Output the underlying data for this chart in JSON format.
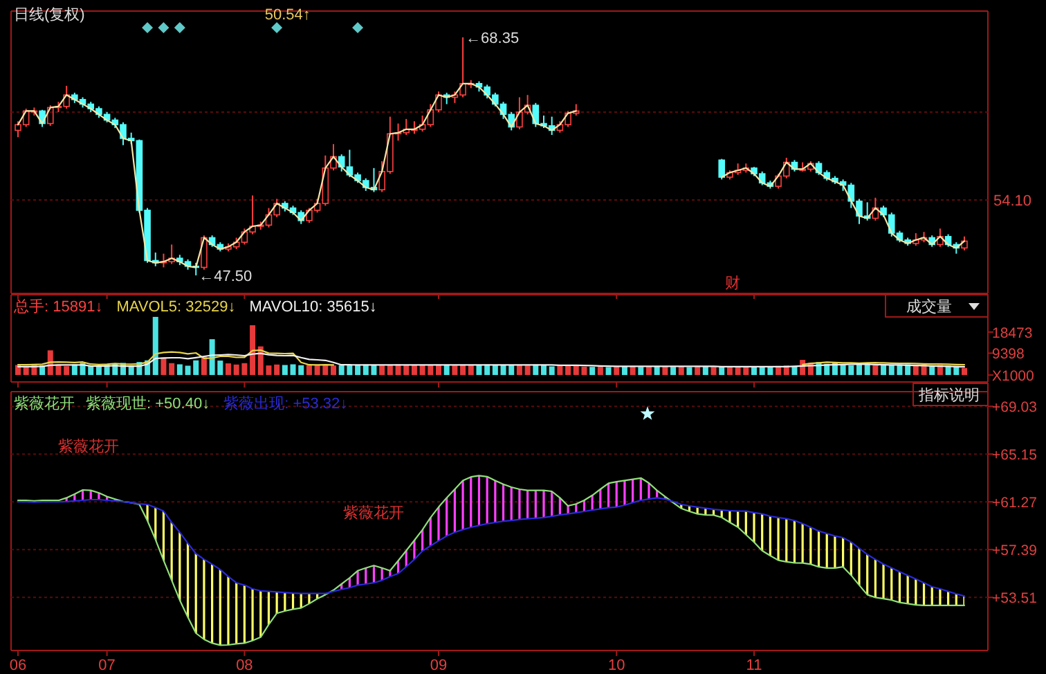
{
  "chart_data": [
    {
      "type": "candlestick",
      "title": "日线(复权)",
      "categories": [
        "06",
        null,
        null,
        null,
        null,
        null,
        null,
        null,
        null,
        null,
        null,
        "07",
        null,
        null,
        null,
        null,
        null,
        null,
        null,
        null,
        null,
        null,
        null,
        null,
        null,
        null,
        null,
        null,
        "08",
        null,
        null,
        null,
        null,
        null,
        null,
        null,
        null,
        null,
        null,
        null,
        null,
        null,
        null,
        null,
        null,
        null,
        null,
        null,
        null,
        null,
        null,
        null,
        "09",
        null,
        null,
        null,
        null,
        null,
        null,
        null,
        null,
        null,
        null,
        null,
        null,
        null,
        null,
        null,
        null,
        null,
        null,
        null,
        null,
        null,
        "10",
        null,
        null,
        null,
        null,
        null,
        null,
        null,
        null,
        null,
        null,
        null,
        null,
        null,
        null,
        null,
        null,
        "11",
        null,
        null,
        null,
        null,
        null,
        null,
        null,
        null,
        null,
        null,
        null,
        null,
        null,
        null,
        null,
        null,
        null,
        null,
        null,
        null,
        null,
        null,
        null,
        null,
        null,
        null
      ],
      "ohlc": [
        [
          60.2,
          61.0,
          59.6,
          60.7
        ],
        [
          60.7,
          62.1,
          60.5,
          61.9
        ],
        [
          61.9,
          62.2,
          61.5,
          61.9
        ],
        [
          61.9,
          62.0,
          60.5,
          60.8
        ],
        [
          60.8,
          62.4,
          60.6,
          62.2
        ],
        [
          62.2,
          62.7,
          61.8,
          62.3
        ],
        [
          62.3,
          64.1,
          62.1,
          63.3
        ],
        [
          63.3,
          63.5,
          62.6,
          62.9
        ],
        [
          62.9,
          63.1,
          62.2,
          62.5
        ],
        [
          62.5,
          62.7,
          61.8,
          62.1
        ],
        [
          62.1,
          62.3,
          61.3,
          61.6
        ],
        [
          61.6,
          61.8,
          60.9,
          61.1
        ],
        [
          61.1,
          61.3,
          60.4,
          60.7
        ],
        [
          60.7,
          60.9,
          58.9,
          59.5
        ],
        [
          59.5,
          60.0,
          59.0,
          59.3
        ],
        [
          59.3,
          59.4,
          53.0,
          53.2
        ],
        [
          53.2,
          53.4,
          48.6,
          48.8
        ],
        [
          48.8,
          49.5,
          48.3,
          48.6
        ],
        [
          48.6,
          49.4,
          48.2,
          48.7
        ],
        [
          48.7,
          50.2,
          48.5,
          49.0
        ],
        [
          49.0,
          49.3,
          48.4,
          48.7
        ],
        [
          48.7,
          48.9,
          48.0,
          48.3
        ],
        [
          48.3,
          48.6,
          47.5,
          48.2
        ],
        [
          48.2,
          51.0,
          48.0,
          50.8
        ],
        [
          50.8,
          51.0,
          50.0,
          50.2
        ],
        [
          50.2,
          50.4,
          49.6,
          49.8
        ],
        [
          49.8,
          50.3,
          49.6,
          50.0
        ],
        [
          50.0,
          50.8,
          49.8,
          50.4
        ],
        [
          50.4,
          51.6,
          50.2,
          51.3
        ],
        [
          51.3,
          54.5,
          51.1,
          51.8
        ],
        [
          51.8,
          52.2,
          51.5,
          51.9
        ],
        [
          51.9,
          53.4,
          51.7,
          52.8
        ],
        [
          52.8,
          54.2,
          52.6,
          53.8
        ],
        [
          53.8,
          54.0,
          53.1,
          53.4
        ],
        [
          53.4,
          53.6,
          52.8,
          53.0
        ],
        [
          53.0,
          53.2,
          52.0,
          52.3
        ],
        [
          52.3,
          53.4,
          52.1,
          53.2
        ],
        [
          53.2,
          54.2,
          53.0,
          53.8
        ],
        [
          53.8,
          58.0,
          53.6,
          56.9
        ],
        [
          56.9,
          59.0,
          56.7,
          57.9
        ],
        [
          57.9,
          58.1,
          56.6,
          57.0
        ],
        [
          57.0,
          58.5,
          56.1,
          56.3
        ],
        [
          56.3,
          56.5,
          55.6,
          55.8
        ],
        [
          55.8,
          56.0,
          54.9,
          55.2
        ],
        [
          55.2,
          56.9,
          54.8,
          55.0
        ],
        [
          55.0,
          57.5,
          54.8,
          56.6
        ],
        [
          56.6,
          61.4,
          56.4,
          59.9
        ],
        [
          59.9,
          60.8,
          59.3,
          60.0
        ],
        [
          60.0,
          61.2,
          59.8,
          60.3
        ],
        [
          60.3,
          61.0,
          59.9,
          60.3
        ],
        [
          60.3,
          61.5,
          60.1,
          60.7
        ],
        [
          60.7,
          62.5,
          60.5,
          62.0
        ],
        [
          62.0,
          63.6,
          61.8,
          63.3
        ],
        [
          63.3,
          63.5,
          62.5,
          63.1
        ],
        [
          63.1,
          63.6,
          62.6,
          63.3
        ],
        [
          63.3,
          68.35,
          63.1,
          64.3
        ],
        [
          64.3,
          64.6,
          63.9,
          64.3
        ],
        [
          64.3,
          64.5,
          63.6,
          64.0
        ],
        [
          64.0,
          64.2,
          63.0,
          63.3
        ],
        [
          63.3,
          63.5,
          62.3,
          62.5
        ],
        [
          62.5,
          62.7,
          61.2,
          61.6
        ],
        [
          61.6,
          61.8,
          60.2,
          60.5
        ],
        [
          60.5,
          63.1,
          60.3,
          61.8
        ],
        [
          61.8,
          63.3,
          61.6,
          62.4
        ],
        [
          62.4,
          62.6,
          60.5,
          60.8
        ],
        [
          60.8,
          61.5,
          60.4,
          60.6
        ],
        [
          60.6,
          61.4,
          59.8,
          60.2
        ],
        [
          60.2,
          61.0,
          60.0,
          60.7
        ],
        [
          60.7,
          61.9,
          60.5,
          61.7
        ],
        [
          61.7,
          62.5,
          61.5,
          61.9
        ],
        null,
        null,
        null,
        null,
        null,
        null,
        null,
        null,
        null,
        null,
        null,
        null,
        null,
        null,
        null,
        null,
        null,
        [
          57.6,
          57.7,
          55.9,
          56.1
        ],
        [
          56.1,
          56.7,
          55.9,
          56.5
        ],
        [
          56.5,
          57.3,
          56.3,
          56.7
        ],
        [
          56.7,
          57.3,
          56.5,
          56.9
        ],
        [
          56.9,
          57.0,
          56.2,
          56.4
        ],
        [
          56.4,
          56.6,
          55.4,
          55.6
        ],
        [
          55.6,
          55.8,
          55.1,
          55.3
        ],
        [
          55.3,
          56.4,
          55.1,
          56.2
        ],
        [
          56.2,
          57.8,
          56.0,
          57.4
        ],
        [
          57.4,
          57.6,
          56.6,
          56.8
        ],
        [
          56.8,
          57.4,
          56.6,
          56.8
        ],
        [
          56.8,
          57.5,
          56.6,
          57.3
        ],
        [
          57.3,
          57.5,
          56.3,
          56.5
        ],
        [
          56.5,
          56.7,
          55.8,
          56.0
        ],
        [
          56.0,
          56.2,
          55.5,
          55.7
        ],
        [
          55.7,
          55.9,
          54.9,
          55.4
        ],
        [
          55.4,
          55.6,
          53.4,
          54.0
        ],
        [
          54.0,
          54.2,
          52.0,
          52.7
        ],
        [
          52.7,
          53.9,
          52.3,
          52.5
        ],
        [
          52.5,
          54.3,
          52.3,
          53.4
        ],
        [
          53.4,
          53.6,
          52.6,
          52.8
        ],
        [
          52.8,
          53.0,
          50.9,
          51.2
        ],
        [
          51.2,
          51.4,
          50.4,
          50.6
        ],
        [
          50.6,
          50.8,
          50.1,
          50.3
        ],
        [
          50.3,
          51.2,
          50.1,
          50.6
        ],
        [
          50.6,
          51.3,
          50.4,
          50.8
        ],
        [
          50.8,
          51.0,
          50.0,
          50.2
        ],
        [
          50.2,
          51.6,
          50.0,
          50.9
        ],
        [
          50.9,
          51.1,
          50.0,
          50.2
        ],
        [
          50.2,
          50.4,
          49.4,
          49.9
        ],
        [
          49.9,
          50.9,
          49.7,
          50.5
        ]
      ],
      "series": [
        {
          "type": "line",
          "color": "#f2e6a6",
          "values": [
            60.7,
            61.9,
            61.9,
            60.8,
            62.2,
            62.3,
            63.3,
            62.9,
            62.5,
            62.1,
            61.6,
            61.1,
            60.7,
            59.5,
            59.3,
            53.2,
            48.8,
            48.6,
            48.7,
            49.0,
            48.7,
            48.3,
            48.2,
            50.8,
            50.2,
            49.8,
            50.0,
            50.4,
            51.3,
            51.8,
            51.9,
            52.8,
            53.8,
            53.4,
            53.0,
            52.3,
            53.2,
            53.8,
            56.9,
            57.9,
            57.0,
            56.3,
            55.8,
            55.2,
            55.0,
            56.6,
            59.9,
            60.0,
            60.3,
            60.3,
            60.7,
            62.0,
            63.3,
            63.1,
            63.3,
            64.3,
            64.3,
            64.0,
            63.3,
            62.5,
            61.6,
            60.5,
            61.8,
            62.4,
            60.8,
            60.6,
            60.2,
            60.7,
            61.7,
            61.9,
            null,
            null,
            null,
            null,
            null,
            null,
            null,
            null,
            null,
            null,
            null,
            null,
            null,
            null,
            null,
            null,
            null,
            56.1,
            56.5,
            56.7,
            56.9,
            56.4,
            55.6,
            55.3,
            56.2,
            57.4,
            56.8,
            56.8,
            57.3,
            56.5,
            56.0,
            55.7,
            55.4,
            54.0,
            52.7,
            52.5,
            53.4,
            52.8,
            51.2,
            50.6,
            50.3,
            50.6,
            50.8,
            50.2,
            50.9,
            50.2,
            49.9,
            50.5
          ]
        },
        {
          "type": "scatter",
          "color": "#5fc8c8",
          "marker": "diamond",
          "values": [
            null,
            null,
            null,
            null,
            null,
            null,
            null,
            null,
            null,
            null,
            null,
            null,
            null,
            null,
            null,
            null,
            69.2,
            null,
            69.2,
            null,
            69.2,
            null,
            null,
            null,
            null,
            null,
            null,
            null,
            null,
            null,
            null,
            null,
            69.2,
            null,
            null,
            null,
            null,
            null,
            null,
            null,
            null,
            null,
            69.2,
            null,
            null,
            null,
            null,
            null,
            null,
            null,
            null,
            null,
            null,
            null,
            null,
            null,
            null,
            null,
            null,
            null,
            null,
            null,
            null,
            null,
            null,
            null,
            null,
            null,
            null,
            null,
            null,
            null,
            null,
            null,
            null,
            null,
            null,
            null,
            null,
            null,
            null,
            null,
            null,
            null,
            null,
            null,
            null,
            null,
            null,
            null,
            null,
            null,
            null,
            null,
            null,
            null,
            null,
            null,
            null,
            null,
            null,
            null,
            null,
            null,
            null,
            null,
            null,
            null,
            null,
            null,
            null,
            null,
            null,
            null,
            null,
            null,
            null,
            null
          ]
        }
      ],
      "ylim": [
        45.92,
        70.65
      ],
      "ref_lines": [
        {
          "axis": "y",
          "value": 54.1,
          "label": "54.10",
          "line_style": "dashed"
        },
        {
          "axis": "y",
          "value": 61.8,
          "line_style": "dashed"
        }
      ],
      "tick_labels": false,
      "annotations": [
        "50.54↑",
        "财",
        "←68.35",
        "←47.50"
      ]
    },
    {
      "type": "bar",
      "ylabel": "成交量",
      "categories": [
        "06",
        null,
        null,
        null,
        null,
        null,
        null,
        null,
        null,
        null,
        null,
        "07",
        null,
        null,
        null,
        null,
        null,
        null,
        null,
        null,
        null,
        null,
        null,
        null,
        null,
        null,
        null,
        null,
        "08",
        null,
        null,
        null,
        null,
        null,
        null,
        null,
        null,
        null,
        null,
        null,
        null,
        null,
        null,
        null,
        null,
        null,
        null,
        null,
        null,
        null,
        null,
        null,
        "09",
        null,
        null,
        null,
        null,
        null,
        null,
        null,
        null,
        null,
        null,
        null,
        null,
        null,
        null,
        null,
        null,
        null,
        null,
        null,
        null,
        null,
        "10",
        null,
        null,
        null,
        null,
        null,
        null,
        null,
        null,
        null,
        null,
        null,
        null,
        null,
        null,
        null,
        null,
        "11",
        null,
        null,
        null,
        null,
        null,
        null,
        null,
        null,
        null,
        null,
        null,
        null,
        null,
        null,
        null,
        null,
        null,
        null,
        null,
        null,
        null,
        null,
        null,
        null,
        null,
        null
      ],
      "values": [
        4300,
        3900,
        4800,
        4100,
        10600,
        4500,
        3800,
        4600,
        5200,
        4100,
        3700,
        4400,
        4900,
        5200,
        4100,
        5600,
        6300,
        25000,
        7400,
        5100,
        4600,
        4000,
        6300,
        7900,
        15400,
        6200,
        5000,
        4500,
        5100,
        21400,
        12300,
        4100,
        4500,
        4300,
        4600,
        4200,
        4400,
        4300,
        4500,
        4100,
        4300,
        4400,
        4200,
        4500,
        4300,
        4100,
        4400,
        4600,
        4300,
        4200,
        4400,
        4300,
        4500,
        4200,
        4100,
        4300,
        4400,
        4200,
        4500,
        4300,
        4200,
        4400,
        4300,
        4100,
        4500,
        4300,
        3700,
        4200,
        3900,
        4300,
        3600,
        3500,
        3800,
        3400,
        3600,
        3700,
        3900,
        3500,
        3600,
        3800,
        3700,
        3500,
        3600,
        3400,
        3900,
        3700,
        3500,
        3600,
        3300,
        3800,
        3500,
        3700,
        3400,
        3600,
        3900,
        4100,
        3600,
        6500,
        5200,
        5600,
        4800,
        5300,
        4600,
        4200,
        4800,
        5000,
        4400,
        4700,
        4300,
        4500,
        4600,
        4100,
        4400,
        3800,
        4300,
        4000,
        3900,
        3000
      ],
      "colors": [
        "#ff4040",
        "#ff4040",
        "#ff4040",
        "#54fcfc",
        "#ff4040",
        "#ff4040",
        "#ff4040",
        "#54fcfc",
        "#54fcfc",
        "#54fcfc",
        "#54fcfc",
        "#54fcfc",
        "#54fcfc",
        "#54fcfc",
        "#54fcfc",
        "#54fcfc",
        "#54fcfc",
        "#54fcfc",
        "#ff4040",
        "#ff4040",
        "#54fcfc",
        "#54fcfc",
        "#54fcfc",
        "#ff4040",
        "#54fcfc",
        "#54fcfc",
        "#ff4040",
        "#ff4040",
        "#ff4040",
        "#ff4040",
        "#ff4040",
        "#ff4040",
        "#ff4040",
        "#54fcfc",
        "#54fcfc",
        "#54fcfc",
        "#ff4040",
        "#ff4040",
        "#ff4040",
        "#ff4040",
        "#54fcfc",
        "#54fcfc",
        "#54fcfc",
        "#54fcfc",
        "#54fcfc",
        "#ff4040",
        "#ff4040",
        "#ff4040",
        "#ff4040",
        "#ff4040",
        "#ff4040",
        "#ff4040",
        "#ff4040",
        "#54fcfc",
        "#ff4040",
        "#ff4040",
        "#ff4040",
        "#54fcfc",
        "#54fcfc",
        "#54fcfc",
        "#54fcfc",
        "#54fcfc",
        "#ff4040",
        "#ff4040",
        "#54fcfc",
        "#54fcfc",
        "#54fcfc",
        "#ff4040",
        "#ff4040",
        "#ff4040",
        "#ff4040",
        "#54fcfc",
        "#ff4040",
        "#54fcfc",
        "#ff4040",
        "#54fcfc",
        "#ff4040",
        "#54fcfc",
        "#ff4040",
        "#54fcfc",
        "#ff4040",
        "#54fcfc",
        "#ff4040",
        "#54fcfc",
        "#ff4040",
        "#54fcfc",
        "#ff4040",
        "#54fcfc",
        "#ff4040",
        "#ff4040",
        "#ff4040",
        "#54fcfc",
        "#54fcfc",
        "#54fcfc",
        "#ff4040",
        "#ff4040",
        "#54fcfc",
        "#ff4040",
        "#ff4040",
        "#54fcfc",
        "#54fcfc",
        "#54fcfc",
        "#54fcfc",
        "#54fcfc",
        "#54fcfc",
        "#54fcfc",
        "#ff4040",
        "#54fcfc",
        "#54fcfc",
        "#54fcfc",
        "#54fcfc",
        "#ff4040",
        "#ff4040",
        "#54fcfc",
        "#ff4040",
        "#54fcfc",
        "#54fcfc",
        "#ff4040"
      ],
      "series": [
        {
          "type": "line",
          "color": "#e8d44a",
          "values": [
            4400,
            4400,
            4500,
            4600,
            5500,
            5600,
            5500,
            5400,
            5600,
            4700,
            4500,
            4600,
            4900,
            4700,
            4600,
            4800,
            5500,
            9100,
            9700,
            9900,
            9700,
            9100,
            9500,
            7200,
            7300,
            8000,
            8000,
            7600,
            7600,
            10500,
            10700,
            9400,
            9300,
            9200,
            9300,
            5400,
            4400,
            4300,
            4400,
            4300,
            null,
            null,
            null,
            null,
            null,
            null,
            null,
            null,
            null,
            null,
            null,
            null,
            null,
            null,
            null,
            null,
            null,
            null,
            null,
            null,
            null,
            null,
            null,
            null,
            null,
            null,
            null,
            null,
            null,
            null,
            null,
            null,
            null,
            null,
            null,
            null,
            null,
            null,
            null,
            null,
            null,
            null,
            null,
            null,
            null,
            null,
            null,
            null,
            null,
            null,
            null,
            null,
            null,
            null,
            null,
            null,
            null,
            4500,
            5000,
            5200,
            5500,
            5400,
            5200,
            5200,
            5100,
            5200,
            5300,
            5200,
            5100,
            5000,
            5000,
            4900,
            4800,
            4700,
            4700,
            4600,
            4500,
            4400
          ]
        },
        {
          "type": "line",
          "color": "#f0f0f0",
          "values": [
            3600,
            3600,
            3600,
            3700,
            4200,
            4300,
            4300,
            4300,
            4300,
            3900,
            3800,
            3900,
            4000,
            3800,
            3800,
            3800,
            4600,
            7100,
            7300,
            7400,
            7400,
            7000,
            7500,
            8000,
            8500,
            8600,
            8800,
            8600,
            8300,
            9000,
            9300,
            8700,
            8400,
            8300,
            8400,
            7500,
            6700,
            6500,
            6300,
            5400,
            4400,
            4400,
            4300,
            4300,
            4300,
            4300,
            4300,
            4300,
            4300,
            4300,
            4300,
            4300,
            4300,
            4300,
            4300,
            4300,
            4300,
            4300,
            4300,
            4300,
            4300,
            4300,
            4300,
            4300,
            4300,
            4300,
            4300,
            4200,
            4200,
            4200,
            4100,
            4000,
            3900,
            3800,
            3700,
            3700,
            3700,
            3700,
            3700,
            3700,
            3700,
            3700,
            3700,
            3700,
            3700,
            3700,
            3700,
            3600,
            3600,
            3600,
            3600,
            3600,
            3600,
            3600,
            3600,
            3600,
            3700,
            3900,
            4000,
            4100,
            4300,
            4400,
            4500,
            4600,
            4600,
            4600,
            4500,
            4400,
            4300,
            4300,
            4200,
            4100,
            4000,
            3900,
            3800,
            3700,
            3600,
            3500
          ]
        }
      ],
      "ylim": [
        -3000,
        34500
      ],
      "yticks": [
        18473,
        9398,
        {
          "value": 0,
          "label": "X1000"
        }
      ],
      "tick_labels": "y",
      "annotations": [
        "总手: 15891↓",
        "MAVOL5: 32529↓",
        "MAVOL10: 35615↓"
      ]
    },
    {
      "type": "line",
      "title": "紫薇花开",
      "subtitle": "指标说明",
      "categories": [
        "06",
        null,
        null,
        null,
        null,
        null,
        null,
        null,
        null,
        null,
        null,
        "07",
        null,
        null,
        null,
        null,
        null,
        null,
        null,
        null,
        null,
        null,
        null,
        null,
        null,
        null,
        null,
        null,
        "08",
        null,
        null,
        null,
        null,
        null,
        null,
        null,
        null,
        null,
        null,
        null,
        null,
        null,
        null,
        null,
        null,
        null,
        null,
        null,
        null,
        null,
        null,
        null,
        "09",
        null,
        null,
        null,
        null,
        null,
        null,
        null,
        null,
        null,
        null,
        null,
        null,
        null,
        null,
        null,
        null,
        null,
        null,
        null,
        null,
        null,
        "10",
        null,
        null,
        null,
        null,
        null,
        null,
        null,
        null,
        null,
        null,
        null,
        null,
        null,
        null,
        null,
        null,
        "11",
        null,
        null,
        null,
        null,
        null,
        null,
        null,
        null,
        null,
        null,
        null,
        null,
        null,
        null,
        null,
        null,
        null,
        null,
        null,
        null,
        null,
        null,
        null,
        null,
        null,
        null
      ],
      "series": [
        {
          "color": "#8fe07a",
          "lower": [
            61.27,
            61.27,
            61.25,
            61.27,
            61.27,
            61.27,
            61.3,
            61.35,
            61.4,
            61.45,
            61.45,
            61.4,
            61.35,
            61.3,
            61.2,
            61.06,
            59.76,
            58.2,
            56.53,
            54.9,
            53.29,
            51.9,
            50.6,
            50.1,
            49.8,
            49.63,
            49.65,
            49.74,
            49.8,
            50.0,
            50.28,
            51.3,
            52.22,
            52.4,
            52.55,
            52.65,
            53.0,
            53.4,
            53.73,
            54.0,
            54.16,
            54.3,
            54.5,
            54.6,
            54.7,
            54.9,
            55.2,
            55.45,
            56.0,
            56.6,
            57.28,
            57.7,
            58.1,
            58.5,
            58.8,
            59.01,
            59.2,
            59.35,
            59.5,
            59.6,
            59.7,
            59.76,
            59.85,
            59.9,
            59.95,
            60.0,
            60.09,
            60.2,
            60.3,
            60.4,
            60.5,
            60.6,
            60.7,
            60.8,
            60.84,
            61.0,
            61.2,
            61.4,
            61.5,
            61.6,
            61.5,
            61.2,
            60.73,
            60.5,
            60.3,
            60.2,
            60.19,
            60.0,
            59.6,
            59.22,
            58.6,
            58.0,
            57.3,
            56.9,
            56.53,
            56.4,
            56.31,
            56.3,
            56.2,
            55.99,
            55.9,
            55.9,
            55.99,
            55.3,
            54.5,
            53.73,
            53.5,
            53.4,
            53.29,
            53.1,
            53.0,
            52.9,
            52.86,
            52.86,
            52.86,
            52.86,
            52.86,
            52.86
          ],
          "upper": [
            61.38,
            61.38,
            61.35,
            61.38,
            61.4,
            61.38,
            61.6,
            61.9,
            62.24,
            62.2,
            62.0,
            61.7,
            61.5,
            61.3,
            61.2,
            61.1,
            61.06,
            60.8,
            60.52,
            59.6,
            58.8,
            57.9,
            57.07,
            56.6,
            56.2,
            55.77,
            55.2,
            54.7,
            54.5,
            54.2,
            54.05,
            54.0,
            53.95,
            53.9,
            53.85,
            53.83,
            53.83,
            53.83,
            53.83,
            54.1,
            54.59,
            55.1,
            55.67,
            55.9,
            56.1,
            55.9,
            55.67,
            56.5,
            57.3,
            58.15,
            59.0,
            60.0,
            60.84,
            61.6,
            62.3,
            63.0,
            63.3,
            63.4,
            63.32,
            63.0,
            62.7,
            62.46,
            62.3,
            62.2,
            62.2,
            62.2,
            62.13,
            61.6,
            60.95,
            61.1,
            61.4,
            61.8,
            62.3,
            62.78,
            62.9,
            63.0,
            63.1,
            63.21,
            62.8,
            62.2,
            61.7,
            61.3,
            61.06,
            60.95,
            60.85,
            60.75,
            60.65,
            60.6,
            60.55,
            60.52,
            60.52,
            60.4,
            60.3,
            60.1,
            60.0,
            59.9,
            59.76,
            59.5,
            59.2,
            58.9,
            58.7,
            58.5,
            58.36,
            58.0,
            57.5,
            57.0,
            56.6,
            56.21,
            55.9,
            55.6,
            55.3,
            55.0,
            54.7,
            54.37,
            54.2,
            54.0,
            53.8,
            53.62
          ],
          "values": [
            61.38,
            61.38,
            61.35,
            61.38,
            61.4,
            61.38,
            61.6,
            61.9,
            62.24,
            62.2,
            62.0,
            61.7,
            61.5,
            61.3,
            61.2,
            61.06,
            59.76,
            58.2,
            56.53,
            54.9,
            53.29,
            51.9,
            50.6,
            50.1,
            49.8,
            49.63,
            49.65,
            49.74,
            49.8,
            50.0,
            50.28,
            51.3,
            52.22,
            52.4,
            52.55,
            52.65,
            53.0,
            53.4,
            53.73,
            54.1,
            54.59,
            55.1,
            55.67,
            55.9,
            56.1,
            55.9,
            55.67,
            56.5,
            57.3,
            58.15,
            59.0,
            60.0,
            60.84,
            61.6,
            62.3,
            63.0,
            63.3,
            63.4,
            63.32,
            63.0,
            62.7,
            62.46,
            62.3,
            62.2,
            62.2,
            62.2,
            62.13,
            61.6,
            60.95,
            61.1,
            61.4,
            61.8,
            62.3,
            62.78,
            62.9,
            63.0,
            63.1,
            63.21,
            62.8,
            62.2,
            61.7,
            61.2,
            60.73,
            60.5,
            60.3,
            60.2,
            60.19,
            60.0,
            59.6,
            59.22,
            58.6,
            58.0,
            57.3,
            56.9,
            56.53,
            56.4,
            56.31,
            56.3,
            56.2,
            55.99,
            55.9,
            55.9,
            55.99,
            55.3,
            54.5,
            53.73,
            53.5,
            53.4,
            53.29,
            53.1,
            53.0,
            52.9,
            52.86,
            52.86,
            52.86,
            52.86,
            52.86,
            52.86
          ]
        },
        {
          "color": "#2a2ad8",
          "values": [
            61.27,
            61.27,
            61.25,
            61.27,
            61.27,
            61.27,
            61.3,
            61.35,
            61.4,
            61.45,
            61.45,
            61.4,
            61.35,
            61.3,
            61.2,
            61.1,
            61.06,
            60.8,
            60.52,
            59.6,
            58.8,
            57.9,
            57.07,
            56.6,
            56.2,
            55.77,
            55.2,
            54.7,
            54.5,
            54.2,
            54.05,
            54.0,
            53.95,
            53.9,
            53.85,
            53.83,
            53.83,
            53.83,
            53.83,
            54.0,
            54.16,
            54.3,
            54.5,
            54.6,
            54.7,
            54.9,
            55.2,
            55.45,
            56.0,
            56.6,
            57.28,
            57.7,
            58.1,
            58.5,
            58.8,
            59.01,
            59.2,
            59.35,
            59.5,
            59.6,
            59.7,
            59.76,
            59.85,
            59.9,
            59.95,
            60.0,
            60.09,
            60.2,
            60.3,
            60.4,
            60.5,
            60.6,
            60.7,
            60.8,
            60.84,
            61.0,
            61.2,
            61.4,
            61.5,
            61.6,
            61.5,
            61.3,
            61.06,
            60.95,
            60.85,
            60.75,
            60.65,
            60.6,
            60.55,
            60.52,
            60.52,
            60.4,
            60.3,
            60.1,
            60.0,
            59.9,
            59.76,
            59.5,
            59.2,
            58.9,
            58.7,
            58.5,
            58.36,
            58.0,
            57.5,
            57.0,
            56.6,
            56.21,
            55.9,
            55.6,
            55.3,
            55.0,
            54.7,
            54.37,
            54.2,
            54.0,
            53.8,
            53.62
          ]
        }
      ],
      "ylim": [
        49.2,
        70.22
      ],
      "yticks": [
        {
          "value": 69.03,
          "label": "+69.03"
        },
        {
          "value": 65.15,
          "label": "+65.15"
        },
        {
          "value": 61.27,
          "label": "+61.27"
        },
        {
          "value": 57.39,
          "label": "+57.39"
        },
        {
          "value": 53.51,
          "label": "+53.51"
        }
      ],
      "grid": "y",
      "annotations": [
        "紫薇现世: +50.40↓",
        "紫薇出现: +53.32↓",
        "紫薇花开",
        "紫薇花开"
      ]
    }
  ]
}
